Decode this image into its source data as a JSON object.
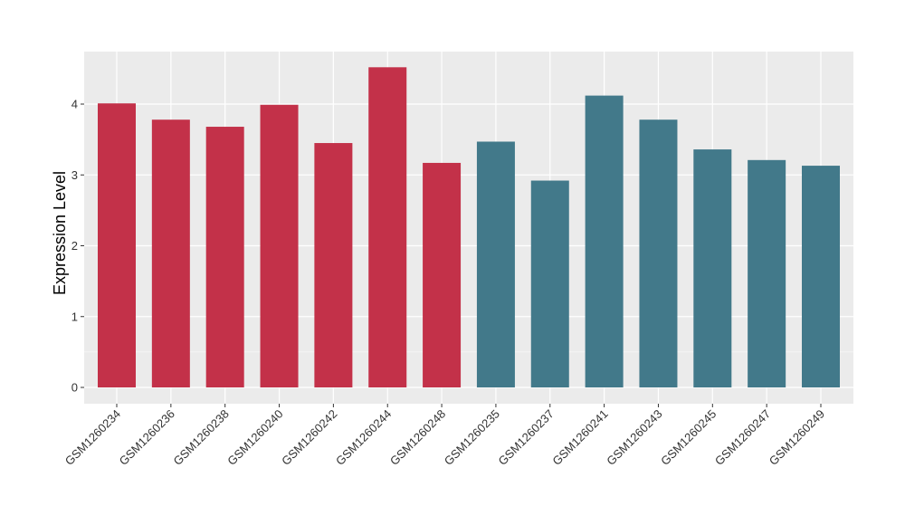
{
  "chart_data": {
    "type": "bar",
    "title": "",
    "xlabel": "",
    "ylabel": "Expression Level",
    "ylim": [
      0,
      4.65
    ],
    "yticks": [
      "0",
      "1",
      "2",
      "3",
      "4"
    ],
    "grid": true,
    "legend": "none",
    "colors": {
      "group_a": "#C33149",
      "group_b": "#42798A",
      "panel": "#EBEBEB",
      "grid": "#FFFFFF"
    },
    "categories": [
      "GSM1260234",
      "GSM1260236",
      "GSM1260238",
      "GSM1260240",
      "GSM1260242",
      "GSM1260244",
      "GSM1260248",
      "GSM1260235",
      "GSM1260237",
      "GSM1260241",
      "GSM1260243",
      "GSM1260245",
      "GSM1260247",
      "GSM1260249"
    ],
    "values": [
      4.01,
      3.78,
      3.68,
      3.99,
      3.45,
      4.52,
      3.17,
      3.47,
      2.92,
      4.12,
      3.78,
      3.36,
      3.21,
      3.13
    ],
    "groups": [
      "a",
      "a",
      "a",
      "a",
      "a",
      "a",
      "a",
      "b",
      "b",
      "b",
      "b",
      "b",
      "b",
      "b"
    ]
  }
}
